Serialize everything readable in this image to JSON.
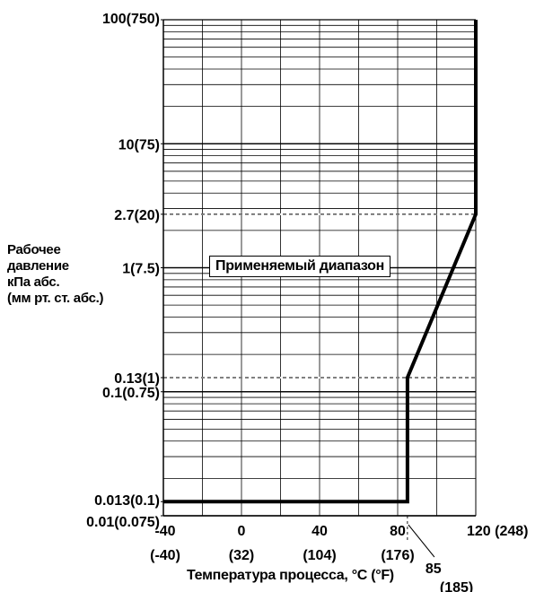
{
  "chart_data": {
    "type": "line",
    "title": "",
    "ylabel": [
      "Рабочее",
      "давление",
      "кПа абс.",
      "(мм рт. ст. абс.)"
    ],
    "xlabel": "Температура процесса, °C (°F)",
    "region_label": "Применяемый диапазон",
    "x_scale": "linear",
    "y_scale": "log",
    "xlim": [
      -40,
      120
    ],
    "ylim": [
      0.01,
      100
    ],
    "grid": true,
    "x_ticks": [
      {
        "value": -40,
        "label": "-40",
        "sublabel": "(-40)"
      },
      {
        "value": 0,
        "label": "0",
        "sublabel": "(32)"
      },
      {
        "value": 40,
        "label": "40",
        "sublabel": "(104)"
      },
      {
        "value": 80,
        "label": "80",
        "sublabel": "(176)"
      },
      {
        "value": 120,
        "label": "120 (248)",
        "sublabel": ""
      }
    ],
    "x_annotation": {
      "value": 85,
      "label": "85",
      "sublabel": "(185)"
    },
    "y_ticks": [
      {
        "value": 100,
        "label": "100(750)"
      },
      {
        "value": 10,
        "label": "10(75)"
      },
      {
        "value": 2.7,
        "label": "2.7(20)"
      },
      {
        "value": 1,
        "label": "1(7.5)"
      },
      {
        "value": 0.13,
        "label": "0.13(1)"
      },
      {
        "value": 0.1,
        "label": "0.1(0.75)"
      },
      {
        "value": 0.013,
        "label": "0.013(0.1)"
      },
      {
        "value": 0.01,
        "label": "0.01(0.075)"
      }
    ],
    "dashed_levels": [
      2.7,
      0.13
    ],
    "series": [
      {
        "values": [
          {
            "x": -40,
            "y": 0.013
          },
          {
            "x": 85,
            "y": 0.013
          },
          {
            "x": 85,
            "y": 0.13
          },
          {
            "x": 120,
            "y": 2.7
          },
          {
            "x": 120,
            "y": 100
          }
        ]
      }
    ]
  }
}
